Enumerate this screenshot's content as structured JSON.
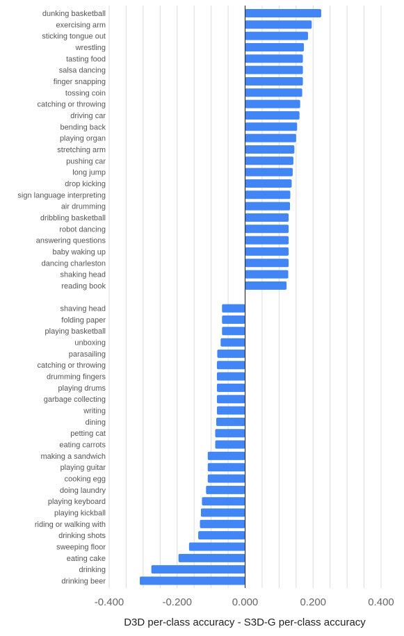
{
  "chart_data": {
    "type": "bar",
    "orientation": "horizontal",
    "xlabel": "D3D per-class accuracy - S3D-G per-class accuracy",
    "xlim": [
      -0.4,
      0.4
    ],
    "xticks": [
      "-0.400",
      "-0.200",
      "0.000",
      "0.200",
      "0.400"
    ],
    "grid": true,
    "bar_color": "#4285f4",
    "groups": [
      {
        "categories": [
          "dunking basketball",
          "exercising arm",
          "sticking tongue out",
          "wrestling",
          "tasting food",
          "salsa dancing",
          "finger snapping",
          "tossing coin",
          "catching or throwing",
          "driving car",
          "bending back",
          "playing organ",
          "stretching arm",
          "pushing car",
          "long jump",
          "drop kicking",
          "sign language interpreting",
          "air drumming",
          "dribbling basketball",
          "robot dancing",
          "answering questions",
          "baby waking up",
          "dancing charleston",
          "shaking head",
          "reading book"
        ],
        "values": [
          0.224,
          0.196,
          0.185,
          0.173,
          0.17,
          0.17,
          0.17,
          0.168,
          0.162,
          0.16,
          0.153,
          0.15,
          0.145,
          0.142,
          0.14,
          0.137,
          0.133,
          0.132,
          0.128,
          0.128,
          0.128,
          0.128,
          0.128,
          0.127,
          0.122
        ]
      },
      {
        "categories": [
          "shaving head",
          "folding paper",
          "playing basketball",
          "unboxing",
          "parasailing",
          "catching or throwing",
          "drumming fingers",
          "playing drums",
          "garbage collecting",
          "writing",
          "dining",
          "petting cat",
          "eating carrots",
          "making a sandwich",
          "playing guitar",
          "cooking egg",
          "doing laundry",
          "playing keyboard",
          "playing kickball",
          "riding or walking with",
          "drinking shots",
          "sweeping floor",
          "eating cake",
          "drinking",
          "drinking beer"
        ],
        "values": [
          -0.068,
          -0.068,
          -0.068,
          -0.072,
          -0.082,
          -0.083,
          -0.083,
          -0.083,
          -0.083,
          -0.083,
          -0.085,
          -0.088,
          -0.088,
          -0.11,
          -0.11,
          -0.11,
          -0.115,
          -0.127,
          -0.13,
          -0.133,
          -0.138,
          -0.165,
          -0.196,
          -0.276,
          -0.31
        ]
      }
    ]
  }
}
